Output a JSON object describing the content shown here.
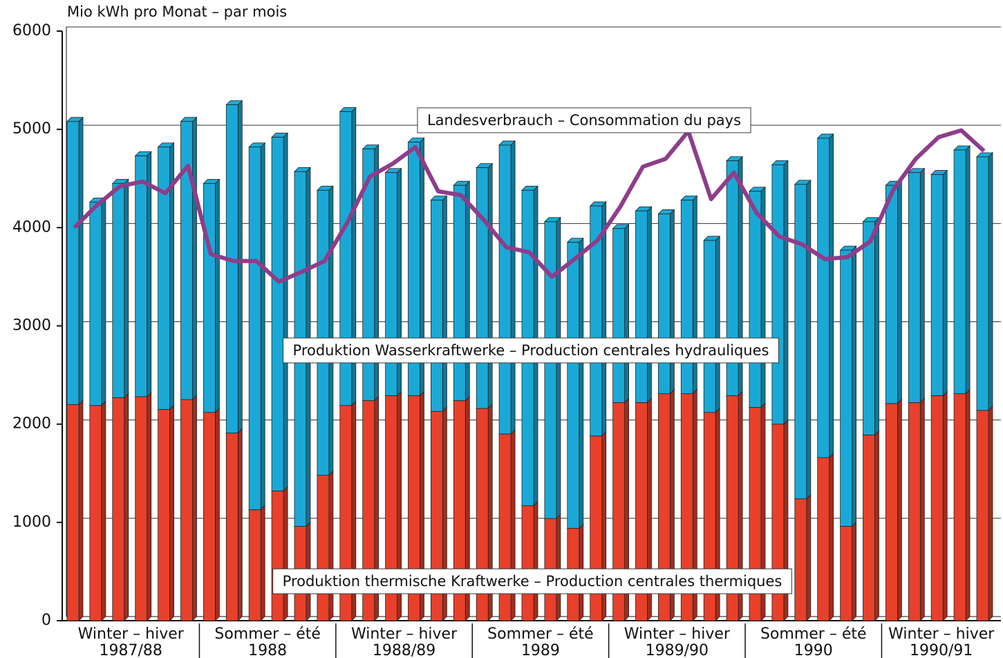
{
  "chart_data": {
    "type": "stacked-bar-line",
    "y_axis_label": "Mio kWh pro Monat – par mois",
    "categories": [
      null,
      null,
      null,
      null,
      null,
      null,
      null,
      null,
      null,
      null,
      null,
      null,
      null,
      null,
      null,
      null,
      null,
      null,
      null,
      null,
      null,
      null,
      null,
      null,
      null,
      null,
      null,
      null,
      null,
      null,
      null,
      null,
      null,
      null,
      null,
      null,
      null,
      null,
      null,
      null,
      null
    ],
    "groups": [
      {
        "name": "Winter – hiver",
        "period": "1987/88",
        "size": 6
      },
      {
        "name": "Sommer – été",
        "period": "1988",
        "size": 6
      },
      {
        "name": "Winter – hiver",
        "period": "1988/89",
        "size": 6
      },
      {
        "name": "Sommer – été",
        "period": "1989",
        "size": 6
      },
      {
        "name": "Winter – hiver",
        "period": "1989/90",
        "size": 6
      },
      {
        "name": "Sommer – été",
        "period": "1990",
        "size": 6
      },
      {
        "name": "Winter – hiver",
        "period": "1990/91",
        "size": 5
      }
    ],
    "series": [
      {
        "name": "Produktion thermische Kraftwerke – Production centrales thermiques",
        "color": "#e8402a",
        "kind": "bar",
        "values": [
          2200,
          2190,
          2270,
          2280,
          2150,
          2250,
          2120,
          1910,
          1130,
          1320,
          960,
          1480,
          2190,
          2240,
          2290,
          2290,
          2130,
          2240,
          2160,
          1900,
          1170,
          1040,
          940,
          1880,
          2220,
          2220,
          2310,
          2310,
          2120,
          2290,
          2170,
          2000,
          1240,
          1660,
          960,
          1890,
          2210,
          2220,
          2290,
          2310,
          2140
        ]
      },
      {
        "name": "Produktion Wasserkraftwerke – Production centrales hydrauliques",
        "color": "#1aa9d6",
        "kind": "bar",
        "values": [
          2880,
          2070,
          2180,
          2450,
          2670,
          2830,
          2330,
          3340,
          3690,
          3600,
          3610,
          2900,
          2990,
          2560,
          2270,
          2580,
          2150,
          2190,
          2450,
          2940,
          3210,
          3020,
          2910,
          2340,
          1770,
          1950,
          1830,
          1970,
          1750,
          2390,
          2200,
          2640,
          3200,
          3250,
          2810,
          2170,
          2220,
          2340,
          2250,
          2480,
          2580
        ]
      },
      {
        "name": "Landesverbrauch – Consommation du pays",
        "color": "#8e3d8a",
        "kind": "line",
        "values": [
          4000,
          4230,
          4420,
          4470,
          4350,
          4630,
          3730,
          3660,
          3660,
          3450,
          3550,
          3660,
          4050,
          4520,
          4650,
          4820,
          4370,
          4330,
          4080,
          3800,
          3750,
          3500,
          3680,
          3870,
          4210,
          4620,
          4700,
          4980,
          4290,
          4560,
          4150,
          3910,
          3830,
          3680,
          3700,
          3860,
          4380,
          4700,
          4920,
          4990,
          4780
        ]
      }
    ],
    "ylim": [
      0,
      6000
    ],
    "yticks": [
      0,
      1000,
      2000,
      3000,
      4000,
      5000,
      6000
    ],
    "grid": true
  }
}
